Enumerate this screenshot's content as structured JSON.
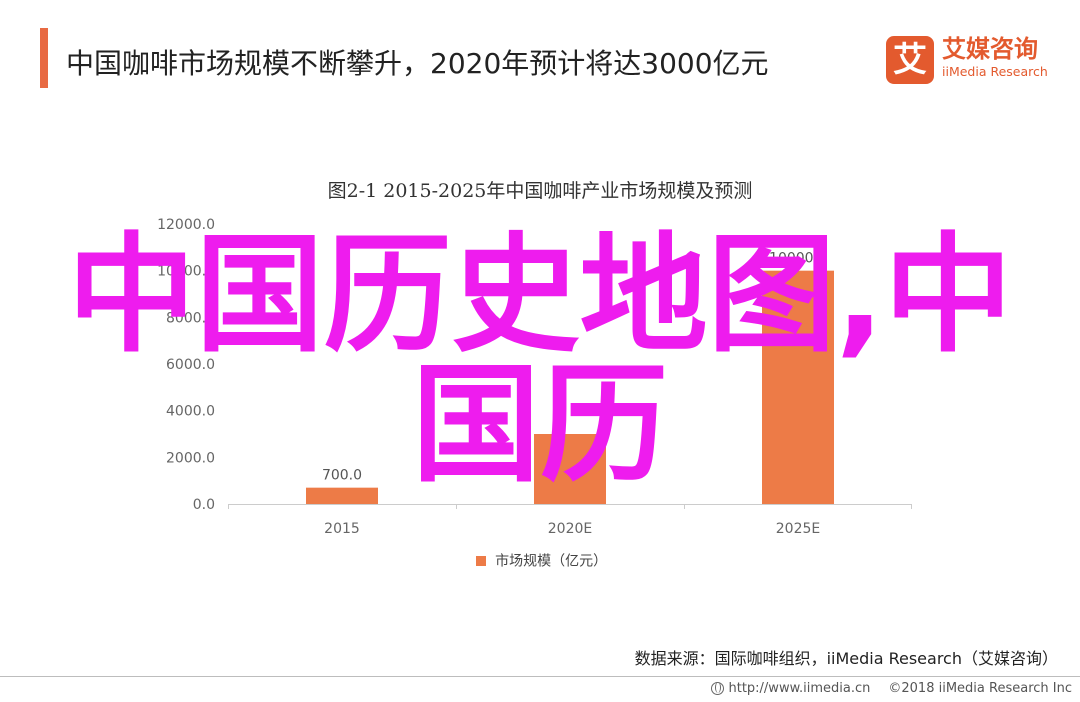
{
  "header": {
    "title": "中国咖啡市场规模不断攀升，2020年预计将达3000亿元"
  },
  "logo": {
    "mark": "艾",
    "name_cn": "艾媒咨询",
    "name_en": "iiMedia Research"
  },
  "chart_data": {
    "type": "bar",
    "title": "图2-1 2015-2025年中国咖啡产业市场规模及预测",
    "categories": [
      "2015",
      "2020E",
      "2025E"
    ],
    "series": [
      {
        "name": "市场规模（亿元）",
        "values": [
          700.0,
          3000.0,
          10000.0
        ]
      }
    ],
    "data_labels": [
      "700.0",
      "",
      "10000.0"
    ],
    "y_ticks": [
      "0.0",
      "2000.0",
      "4000.0",
      "6000.0",
      "8000.0",
      "10000.0",
      "12000.0"
    ],
    "ylim": [
      0,
      12000
    ],
    "xlabel": "",
    "ylabel": "",
    "grid": false,
    "legend_position": "bottom",
    "bar_color": "#ed7b47"
  },
  "source": "数据来源：国际咖啡组织，iiMedia Research（艾媒咨询）",
  "footer": {
    "url": "http://www.iimedia.cn",
    "copyright": "©2018  iiMedia Research  Inc"
  },
  "watermark": {
    "line1": "中国历史地图,中",
    "line2": "国历",
    "color": "#ee1cee"
  }
}
